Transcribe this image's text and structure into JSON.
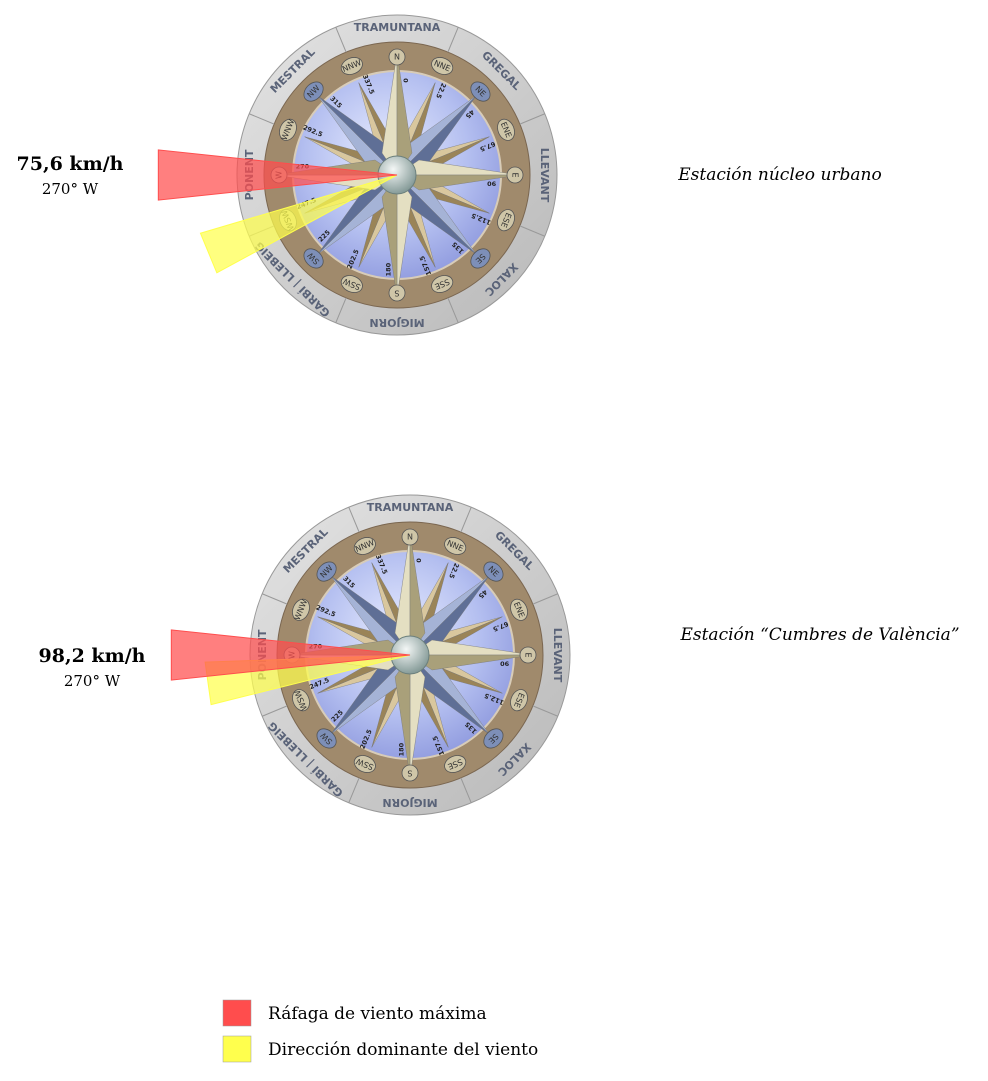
{
  "stations": [
    {
      "name": "Estación núcleo urbano",
      "speed": "75,6 km/h",
      "direction_label": "270° W",
      "gust_direction": 270,
      "dominant_direction": 247.5
    },
    {
      "name": "Estación “Cumbres de València”",
      "speed": "98,2 km/h",
      "direction_label": "270° W",
      "gust_direction": 270,
      "dominant_direction": 262
    }
  ],
  "rose": {
    "winds": [
      "TRAMUNTANA",
      "GREGAL",
      "LLEVANT",
      "XALOC",
      "MIGJORN",
      "GARBÍ | LLEBEIG",
      "PONENT",
      "MESTRAL"
    ],
    "points": [
      "N",
      "NNE",
      "NE",
      "ENE",
      "E",
      "ESE",
      "SE",
      "SSE",
      "S",
      "SSW",
      "SW",
      "WSW",
      "W",
      "WNW",
      "NW",
      "NNW"
    ],
    "degrees": [
      "0",
      "22.5",
      "45",
      "67.5",
      "90",
      "112.5",
      "135",
      "157.5",
      "180",
      "202.5",
      "225",
      "247.5",
      "270",
      "292.5",
      "315",
      "337.5"
    ]
  },
  "legend": [
    {
      "label": "Ráfaga de viento máxima",
      "color": "#ff4d4d"
    },
    {
      "label": "Dirección dominante del viento",
      "color": "#ffff4d"
    }
  ]
}
